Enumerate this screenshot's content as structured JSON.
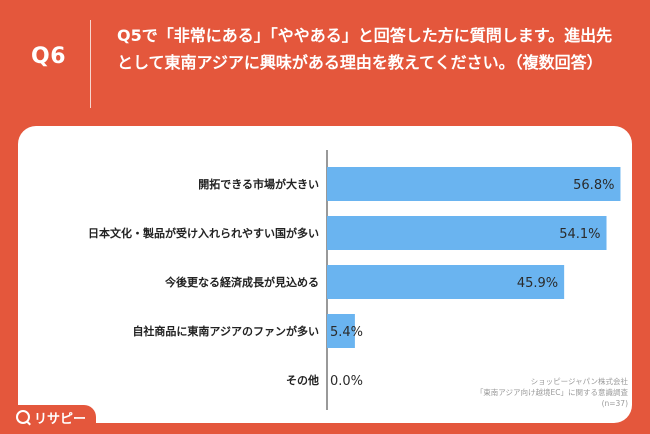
{
  "header": {
    "question_number": "Q6",
    "question_text": "Q5で「非常にある」「ややある」と回答した方に質問します。進出先として東南アジアに興味がある理由を教えてください。（複数回答）"
  },
  "colors": {
    "background": "#e4573c",
    "bar": "#6ab4f0",
    "card": "#ffffff"
  },
  "chart_data": {
    "type": "bar",
    "orientation": "horizontal",
    "categories": [
      "開拓できる市場が大きい",
      "日本文化・製品が受け入れられやすい国が多い",
      "今後更なる経済成長が見込める",
      "自社商品に東南アジアのファンが多い",
      "その他"
    ],
    "values": [
      56.8,
      54.1,
      45.9,
      5.4,
      0.0
    ],
    "value_labels": [
      "56.8%",
      "54.1%",
      "45.9%",
      "5.4%",
      "0.0%"
    ],
    "xlim": [
      0,
      60
    ],
    "grid": false,
    "legend": "none"
  },
  "footer": {
    "line1": "ショッピージャパン株式会社",
    "line2": "「東南アジア向け越境EC」に関する意識調査",
    "line3": "(n=37)"
  },
  "logo": {
    "text": "リサピー",
    "icon": "magnifier-icon"
  }
}
